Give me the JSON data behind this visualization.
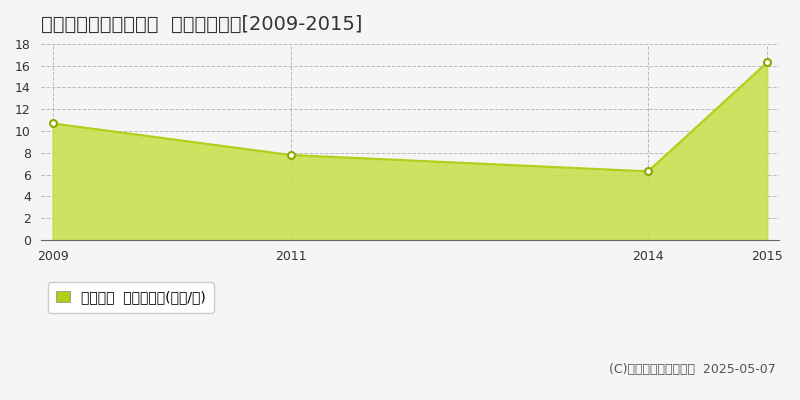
{
  "title": "仲多度郡多度津町栄町  土地価格推移[2009-2015]",
  "years": [
    2009,
    2011,
    2014,
    2015
  ],
  "values": [
    10.7,
    7.8,
    6.3,
    16.3
  ],
  "line_color": "#b5cc18",
  "fill_color": "#c8e050",
  "fill_alpha": 0.9,
  "marker_color": "#ffffff",
  "marker_edge_color": "#8aaa00",
  "ylim": [
    0,
    18
  ],
  "yticks": [
    0,
    2,
    4,
    6,
    8,
    10,
    12,
    14,
    16,
    18
  ],
  "xticks": [
    2009,
    2011,
    2014,
    2015
  ],
  "grid_color": "#bbbbbb",
  "grid_style": "--",
  "bg_color": "#f5f5f5",
  "plot_bg_color": "#f5f5f5",
  "legend_label": "土地価格  平均坪単価(万円/坪)",
  "copyright_text": "(C)土地価格ドットコム  2025-05-07",
  "title_fontsize": 14,
  "axis_fontsize": 9,
  "legend_fontsize": 10,
  "copyright_fontsize": 9
}
